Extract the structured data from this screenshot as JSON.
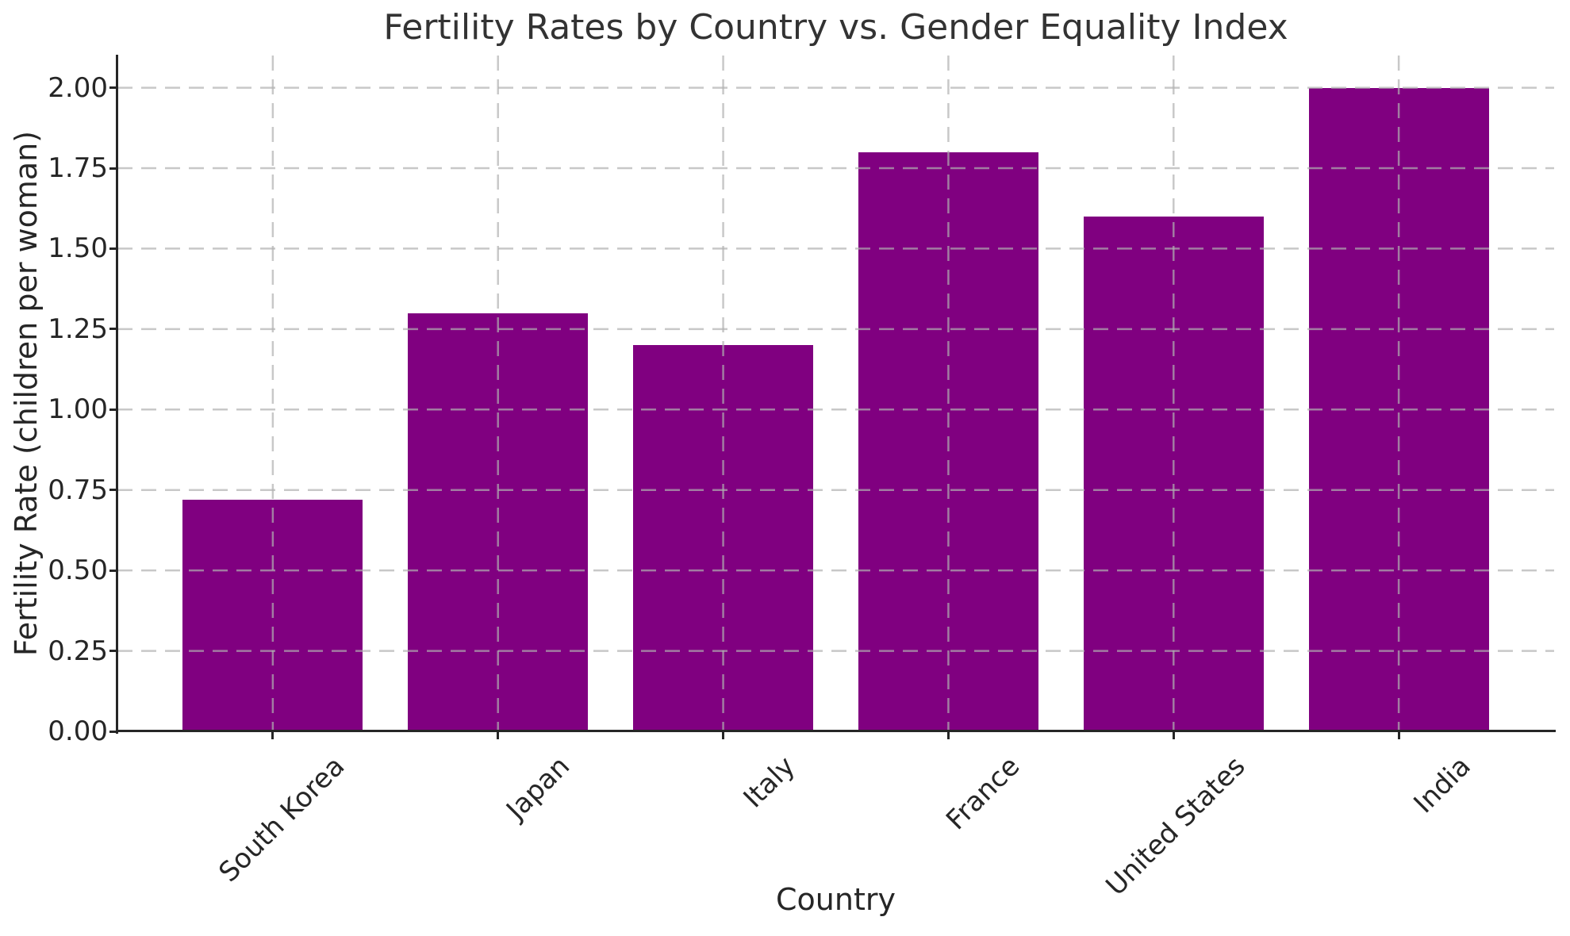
{
  "chart_data": {
    "type": "bar",
    "title": "Fertility Rates by Country vs. Gender Equality Index",
    "xlabel": "Country",
    "ylabel": "Fertility Rate (children per woman)",
    "categories": [
      "South Korea",
      "Japan",
      "Italy",
      "France",
      "United States",
      "India"
    ],
    "values": [
      0.72,
      1.3,
      1.2,
      1.8,
      1.6,
      2.0
    ],
    "ylim": [
      0,
      2.1
    ],
    "ytick_values": [
      0,
      0.25,
      0.5,
      0.75,
      1.0,
      1.25,
      1.5,
      1.75,
      2.0
    ],
    "ytick_labels": [
      "0.00",
      "0.25",
      "0.50",
      "0.75",
      "1.00",
      "1.25",
      "1.50",
      "1.75",
      "2.00"
    ],
    "bar_color": "#800080",
    "bar_width_fraction": 0.8,
    "grid": "both",
    "grid_line_style": "dashed",
    "grid_color": "rgba(176,176,176,0.7)",
    "axis_color": "#262626",
    "text_color": "#262626",
    "title_color": "#333333",
    "legend": "none",
    "x_tick_rotation_deg": 45
  }
}
